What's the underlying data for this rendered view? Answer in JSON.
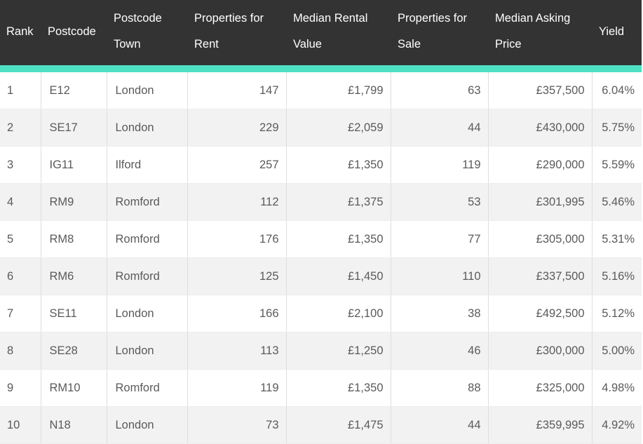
{
  "table": {
    "headers": [
      "Rank",
      "Postcode",
      "Postcode Town",
      "Properties for Rent",
      "Median Rental Value",
      "Properties for Sale",
      "Median Asking Price",
      "Yield"
    ],
    "rows": [
      [
        "1",
        "E12",
        "London",
        "147",
        "£1,799",
        "63",
        "£357,500",
        "6.04%"
      ],
      [
        "2",
        "SE17",
        "London",
        "229",
        "£2,059",
        "44",
        "£430,000",
        "5.75%"
      ],
      [
        "3",
        "IG11",
        "Ilford",
        "257",
        "£1,350",
        "119",
        "£290,000",
        "5.59%"
      ],
      [
        "4",
        "RM9",
        "Romford",
        "112",
        "£1,375",
        "53",
        "£301,995",
        "5.46%"
      ],
      [
        "5",
        "RM8",
        "Romford",
        "176",
        "£1,350",
        "77",
        "£305,000",
        "5.31%"
      ],
      [
        "6",
        "RM6",
        "Romford",
        "125",
        "£1,450",
        "110",
        "£337,500",
        "5.16%"
      ],
      [
        "7",
        "SE11",
        "London",
        "166",
        "£2,100",
        "38",
        "£492,500",
        "5.12%"
      ],
      [
        "8",
        "SE28",
        "London",
        "113",
        "£1,250",
        "46",
        "£300,000",
        "5.00%"
      ],
      [
        "9",
        "RM10",
        "Romford",
        "119",
        "£1,350",
        "88",
        "£325,000",
        "4.98%"
      ],
      [
        "10",
        "N18",
        "London",
        "73",
        "£1,475",
        "44",
        "£359,995",
        "4.92%"
      ]
    ]
  },
  "colors": {
    "header_bg": "#333333",
    "header_text": "#ffffff",
    "accent_stripe": "#4ee0c2",
    "row_alt_bg": "#f2f2f2",
    "cell_text": "#5a5a5a"
  }
}
